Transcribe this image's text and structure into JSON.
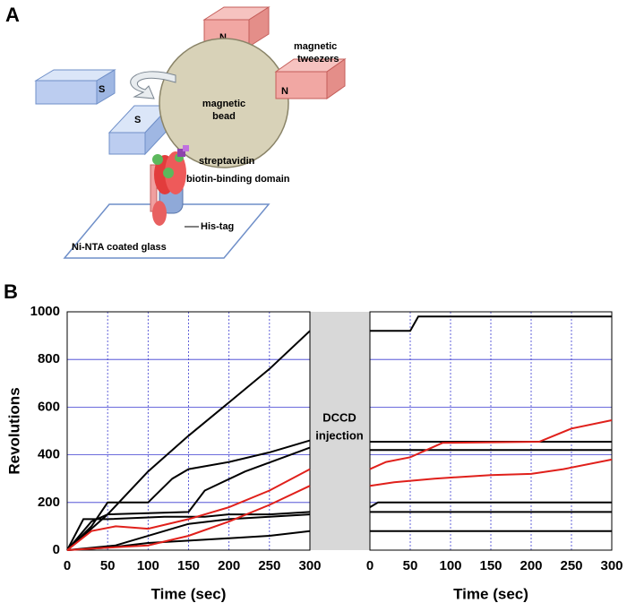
{
  "panel_a": {
    "label": "A",
    "magnet_labels": [
      "N",
      "S",
      "S",
      "N"
    ],
    "tweezers": [
      "magnetic",
      "tweezers"
    ],
    "bead": [
      "magnetic",
      "bead"
    ],
    "streptavidin": "streptavidin",
    "biotin": "biotin-binding domain",
    "his_tag": "His-tag",
    "glass": "Ni-NTA coated glass"
  },
  "panel_b": {
    "label": "B",
    "annotation": [
      "DCCD",
      "injection"
    ]
  },
  "chart_data": [
    {
      "type": "line",
      "xlabel": "Time (sec)",
      "ylabel": "Revolutions",
      "xlim": [
        0,
        300
      ],
      "ylim": [
        0,
        1000
      ],
      "xticks": [
        0,
        50,
        100,
        150,
        200,
        250,
        300
      ],
      "yticks": [
        0,
        200,
        400,
        600,
        800,
        1000
      ],
      "grid": true,
      "ytick_labels": true,
      "series": [
        {
          "color": "#000000",
          "x": [
            0,
            20,
            50,
            100,
            150,
            200,
            250,
            300
          ],
          "values": [
            0,
            60,
            150,
            330,
            480,
            620,
            760,
            920
          ]
        },
        {
          "color": "#000000",
          "x": [
            0,
            30,
            50,
            100,
            130,
            150,
            200,
            250,
            300
          ],
          "values": [
            0,
            100,
            200,
            200,
            300,
            340,
            370,
            410,
            460
          ]
        },
        {
          "color": "#000000",
          "x": [
            0,
            30,
            50,
            150,
            170,
            220,
            300
          ],
          "values": [
            0,
            120,
            150,
            160,
            250,
            330,
            430
          ]
        },
        {
          "color": "#000000",
          "x": [
            0,
            20,
            50,
            120,
            170,
            200,
            250,
            300
          ],
          "values": [
            0,
            130,
            130,
            140,
            140,
            150,
            150,
            160
          ]
        },
        {
          "color": "#000000",
          "x": [
            0,
            60,
            120,
            150,
            200,
            300
          ],
          "values": [
            0,
            20,
            80,
            110,
            130,
            150
          ]
        },
        {
          "color": "#000000",
          "x": [
            0,
            50,
            100,
            150,
            200,
            250,
            300
          ],
          "values": [
            0,
            10,
            30,
            40,
            50,
            60,
            80
          ]
        },
        {
          "color": "#e0201b",
          "x": [
            0,
            30,
            60,
            100,
            150,
            200,
            250,
            300
          ],
          "values": [
            0,
            80,
            100,
            90,
            130,
            180,
            250,
            340
          ]
        },
        {
          "color": "#e0201b",
          "x": [
            0,
            50,
            100,
            150,
            200,
            250,
            300
          ],
          "values": [
            0,
            10,
            20,
            60,
            120,
            190,
            270
          ]
        }
      ]
    },
    {
      "type": "line",
      "xlabel": "Time (sec)",
      "xlim": [
        0,
        300
      ],
      "ylim": [
        0,
        1000
      ],
      "xticks": [
        0,
        50,
        100,
        150,
        200,
        250,
        300
      ],
      "yticks": [
        0,
        200,
        400,
        600,
        800,
        1000
      ],
      "grid": true,
      "ytick_labels": false,
      "series": [
        {
          "color": "#000000",
          "x": [
            0,
            50,
            60,
            300
          ],
          "values": [
            920,
            920,
            980,
            980
          ]
        },
        {
          "color": "#000000",
          "x": [
            0,
            300
          ],
          "values": [
            455,
            455
          ]
        },
        {
          "color": "#000000",
          "x": [
            0,
            300
          ],
          "values": [
            420,
            420
          ]
        },
        {
          "color": "#000000",
          "x": [
            0,
            10,
            300
          ],
          "values": [
            180,
            200,
            200
          ]
        },
        {
          "color": "#000000",
          "x": [
            0,
            300
          ],
          "values": [
            160,
            160
          ]
        },
        {
          "color": "#000000",
          "x": [
            0,
            300
          ],
          "values": [
            80,
            80
          ]
        },
        {
          "color": "#e0201b",
          "x": [
            0,
            20,
            50,
            90,
            210,
            250,
            300
          ],
          "values": [
            340,
            370,
            390,
            450,
            455,
            510,
            545
          ]
        },
        {
          "color": "#e0201b",
          "x": [
            0,
            30,
            80,
            150,
            200,
            240,
            300
          ],
          "values": [
            270,
            285,
            300,
            315,
            320,
            340,
            380
          ]
        }
      ]
    }
  ]
}
